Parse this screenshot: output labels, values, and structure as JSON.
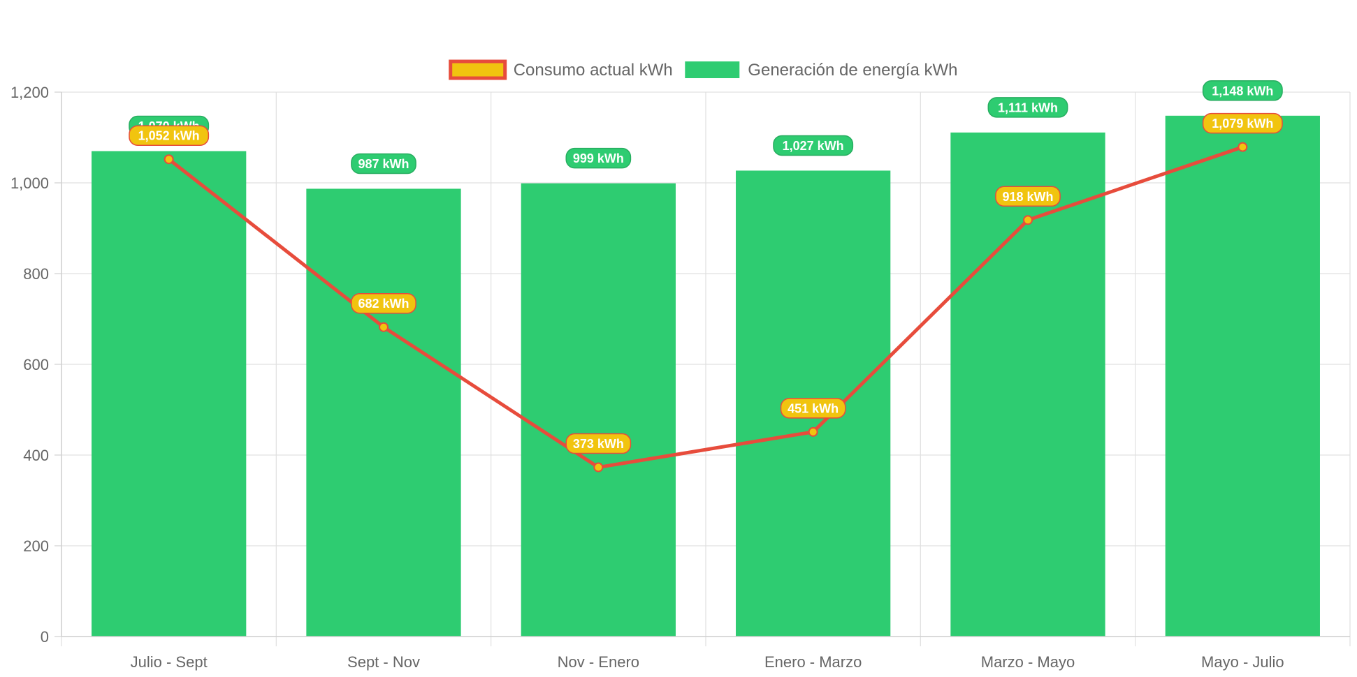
{
  "chart_data": {
    "type": "bar",
    "categories": [
      "Julio - Sept",
      "Sept - Nov",
      "Nov - Enero",
      "Enero - Marzo",
      "Marzo - Mayo",
      "Mayo - Julio"
    ],
    "ylim": [
      0,
      1200
    ],
    "yticks": [
      0,
      200,
      400,
      600,
      800,
      1000,
      1200
    ],
    "ytick_labels": [
      "0",
      "200",
      "400",
      "600",
      "800",
      "1,000",
      "1,200"
    ],
    "grid": true,
    "legend_position": "top-center",
    "series": [
      {
        "name": "Consumo actual kWh",
        "type": "line",
        "color": "#e74c3c",
        "fill": "#f1c40f",
        "values": [
          1052,
          682,
          373,
          451,
          918,
          1079
        ],
        "labels": [
          "1,052 kWh",
          "682 kWh",
          "373 kWh",
          "451 kWh",
          "918 kWh",
          "1,079 kWh"
        ]
      },
      {
        "name": "Generación de energía kWh",
        "type": "bar",
        "color": "#2ecc71",
        "label_border": "#27ae60",
        "values": [
          1070,
          987,
          999,
          1027,
          1111,
          1148
        ],
        "labels": [
          "1,070 kWh",
          "987 kWh",
          "999 kWh",
          "1,027 kWh",
          "1,111 kWh",
          "1,148 kWh"
        ]
      }
    ]
  }
}
